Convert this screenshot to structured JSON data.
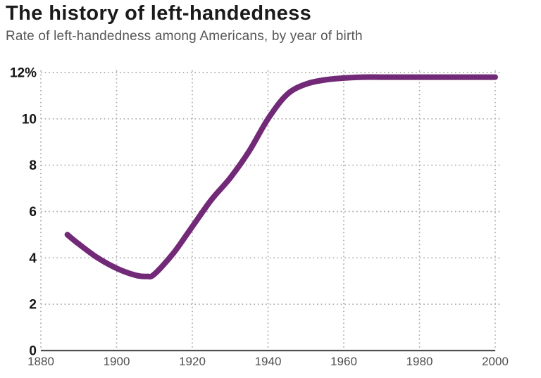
{
  "header": {
    "title": "The history of left-handedness",
    "subtitle": "Rate of left-handedness among Americans, by year of birth"
  },
  "chart_data": {
    "type": "line",
    "title": "The history of left-handedness",
    "subtitle": "Rate of left-handedness among Americans, by year of birth",
    "series": [
      {
        "name": "Rate of left-handedness (%)",
        "x": [
          1887,
          1890,
          1895,
          1900,
          1905,
          1908,
          1910,
          1915,
          1920,
          1925,
          1930,
          1935,
          1940,
          1945,
          1950,
          1955,
          1960,
          1965,
          1970,
          1975,
          1980,
          1985,
          1990,
          1995,
          2000
        ],
        "values": [
          5.0,
          4.6,
          4.0,
          3.55,
          3.25,
          3.2,
          3.3,
          4.2,
          5.35,
          6.5,
          7.45,
          8.6,
          10.0,
          11.05,
          11.5,
          11.68,
          11.76,
          11.8,
          11.8,
          11.8,
          11.8,
          11.8,
          11.8,
          11.8,
          11.8
        ]
      }
    ],
    "xlim": [
      1880,
      2000
    ],
    "ylim": [
      0,
      12
    ],
    "x_ticks": [
      1880,
      1900,
      1920,
      1940,
      1960,
      1980,
      2000
    ],
    "x_tick_labels": [
      "1880",
      "1900",
      "1920",
      "1940",
      "1960",
      "1980",
      "2000"
    ],
    "y_ticks": [
      0,
      2,
      4,
      6,
      8,
      10,
      12
    ],
    "y_tick_labels": [
      "0",
      "2",
      "4",
      "6",
      "8",
      "10",
      "12%"
    ],
    "grid": true,
    "grid_style": "dotted",
    "legend": "none",
    "line_color": "#722977"
  },
  "colors": {
    "background": "#ffffff",
    "title_text": "#1a1a1a",
    "subtitle_text": "#565656",
    "line": "#722977",
    "grid": "#ababab",
    "axis": "#4f4f4f",
    "y_tick_text": "#151515",
    "x_tick_text": "#4f4f4f"
  }
}
